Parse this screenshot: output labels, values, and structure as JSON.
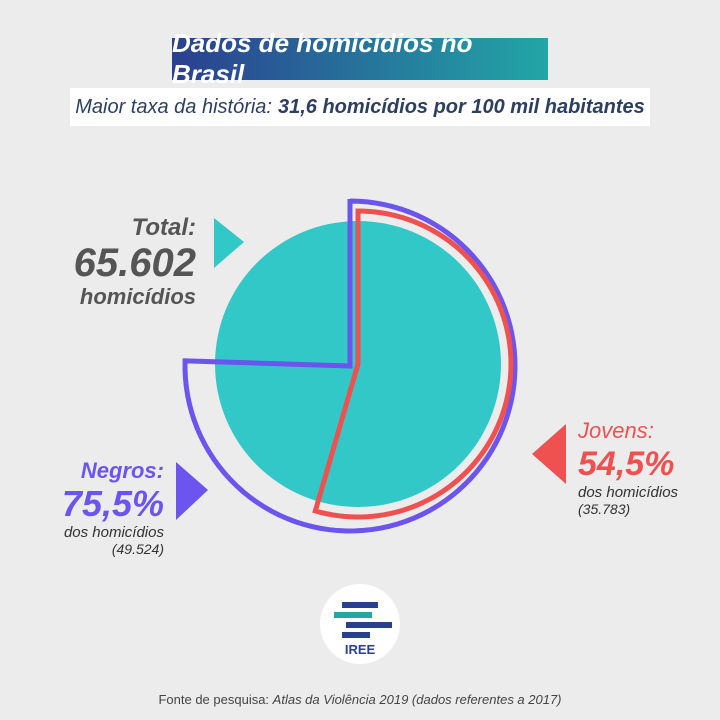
{
  "header": {
    "title": "Dados de homicídios no Brasil",
    "subtitle_prefix": "Maior taxa da história:",
    "subtitle_highlight": "31,6 homicídios por 100 mil habitantes"
  },
  "labels": {
    "total_caption": "Total:",
    "total_value": "65.602",
    "total_unit": "homicídios",
    "jovens_caption": "Jovens:",
    "jovens_value": "54,5%",
    "jovens_sub": "dos homicídios",
    "jovens_count": "(35.783)",
    "negros_caption": "Negros:",
    "negros_value": "75,5%",
    "negros_sub": "dos homicídios",
    "negros_count": "(49.524)"
  },
  "logo": {
    "name": "IREE"
  },
  "footer": {
    "source_prefix": "Fonte de pesquisa:",
    "source_text": "Atlas da Violência 2019 (dados referentes a 2017)"
  },
  "colors": {
    "teal": "#33c8c8",
    "jovens": "#ef5150",
    "negros": "#6c55ee",
    "title_start": "#2b3f8f",
    "title_end": "#22a6a6"
  },
  "chart_data": {
    "type": "pie",
    "total": 65602,
    "series": [
      {
        "name": "Jovens",
        "percent": 54.5,
        "count": 35783
      },
      {
        "name": "Negros",
        "percent": 75.5,
        "count": 49524
      }
    ]
  }
}
